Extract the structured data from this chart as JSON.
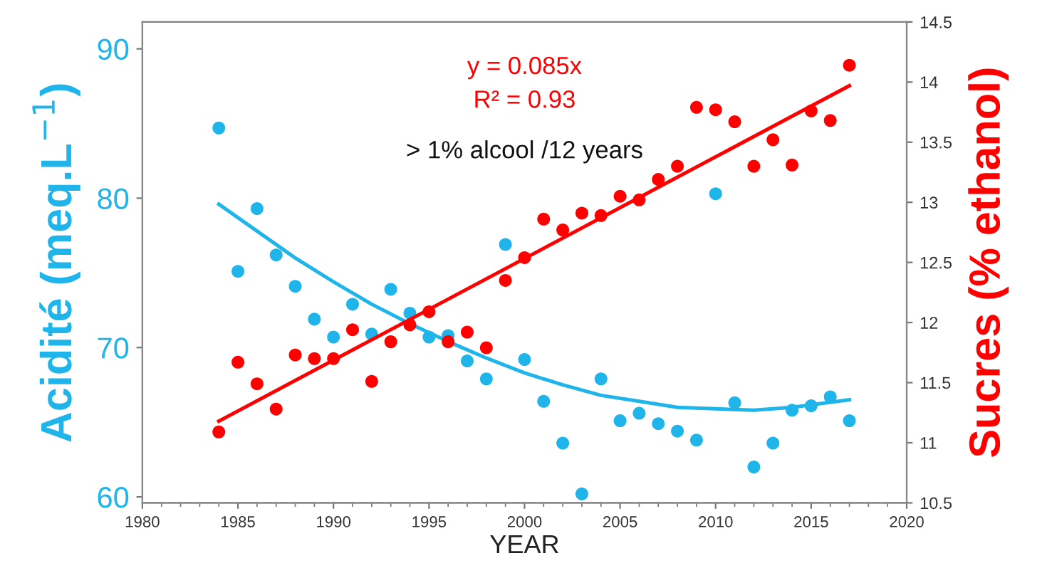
{
  "chart_data": {
    "type": "scatter",
    "xlabel": "YEAR",
    "ylabel": "Acidité (meq.L$^{−1}$)",
    "y2label": "Sucres (% ethanol)",
    "annotations": [
      "y = 0.085x",
      "R² = 0.93",
      "> 1% alcool /12 years"
    ],
    "xlim": [
      1980,
      2020
    ],
    "xticks": [
      1980,
      1985,
      1990,
      1995,
      2000,
      2005,
      2010,
      2015,
      2020
    ],
    "ylim": [
      59.6,
      91.8
    ],
    "yticks": [
      60,
      70,
      80,
      90
    ],
    "y2lim": [
      10.5,
      14.5
    ],
    "y2ticks": [
      10.5,
      11,
      11.5,
      12,
      12.5,
      13,
      13.5,
      14,
      14.5
    ],
    "grid": false,
    "legend": false,
    "series": [
      {
        "marker": "circle",
        "color": "#1fb4ea",
        "x": [
          1984,
          1985,
          1986,
          1987,
          1988,
          1989,
          1990,
          1991,
          1992,
          1993,
          1994,
          1995,
          1996,
          1997,
          1998,
          1999,
          2000,
          2001,
          2002,
          2003,
          2004,
          2005,
          2006,
          2007,
          2008,
          2009,
          2010,
          2011,
          2012,
          2013,
          2014,
          2015,
          2016,
          2017
        ],
        "values": [
          84.7,
          75.1,
          79.3,
          76.2,
          74.1,
          71.9,
          70.7,
          72.9,
          70.9,
          73.9,
          72.3,
          70.7,
          70.8,
          69.1,
          67.9,
          76.9,
          69.2,
          66.4,
          63.6,
          60.2,
          67.9,
          65.1,
          65.6,
          64.9,
          64.4,
          63.8,
          80.3,
          66.3,
          62.0,
          63.6,
          65.8,
          66.1,
          66.7,
          65.1
        ]
      },
      {
        "marker": "circle",
        "axis": "y2",
        "color": "#ff0000",
        "x": [
          1984,
          1985,
          1986,
          1987,
          1988,
          1989,
          1990,
          1991,
          1992,
          1993,
          1994,
          1995,
          1996,
          1997,
          1998,
          1999,
          2000,
          2001,
          2002,
          2003,
          2004,
          2005,
          2006,
          2007,
          2008,
          2009,
          2010,
          2011,
          2012,
          2013,
          2014,
          2015,
          2016,
          2017
        ],
        "values": [
          11.09,
          11.67,
          11.49,
          11.28,
          11.73,
          11.7,
          11.7,
          11.94,
          11.51,
          11.84,
          11.98,
          12.09,
          11.84,
          11.92,
          11.79,
          12.35,
          12.54,
          12.86,
          12.77,
          12.91,
          12.89,
          13.05,
          13.02,
          13.19,
          13.3,
          13.79,
          13.77,
          13.67,
          13.3,
          13.52,
          13.31,
          13.76,
          13.68,
          14.14
        ]
      },
      {
        "type": "line",
        "color": "#1fb4ea",
        "x": [
          1984,
          1986,
          1988,
          1990,
          1992,
          1994,
          1996,
          1998,
          2000,
          2002,
          2004,
          2006,
          2008,
          2010,
          2012,
          2014,
          2017
        ],
        "values": [
          79.6,
          77.8,
          76.0,
          74.4,
          72.9,
          71.6,
          70.4,
          69.3,
          68.3,
          67.5,
          66.8,
          66.4,
          66.0,
          65.9,
          65.8,
          66.0,
          66.5
        ]
      },
      {
        "type": "line",
        "axis": "y2",
        "color": "#ff0000",
        "x": [
          1984,
          2017
        ],
        "values": [
          11.18,
          13.97
        ]
      }
    ]
  }
}
